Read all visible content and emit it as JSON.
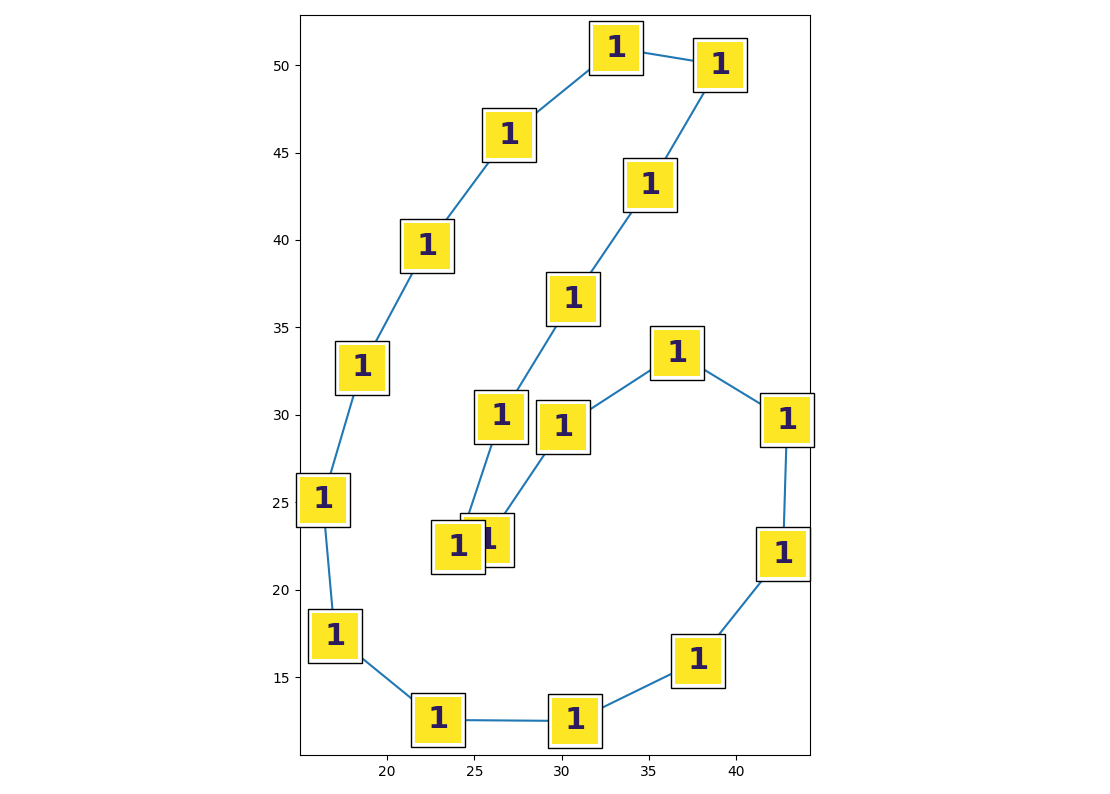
{
  "chart_data": {
    "type": "line",
    "x": [
      24.05,
      26.52,
      30.64,
      35.06,
      39.07,
      33.11,
      26.98,
      22.28,
      18.55,
      16.32,
      17.01,
      22.91,
      30.76,
      37.81,
      42.68,
      42.91,
      36.6,
      30.07,
      25.72
    ],
    "values": [
      22.44,
      29.88,
      36.62,
      43.14,
      50.0,
      50.97,
      46.0,
      39.65,
      32.68,
      25.13,
      17.35,
      12.55,
      12.49,
      15.93,
      22.04,
      29.7,
      33.53,
      29.3,
      22.84
    ],
    "point_labels": [
      "1",
      "1",
      "1",
      "1",
      "1",
      "1",
      "1",
      "1",
      "1",
      "1",
      "1",
      "1",
      "1",
      "1",
      "1",
      "1",
      "1",
      "1",
      "1"
    ],
    "color": "#1f77b4",
    "marker": "square",
    "xlim": [
      15.0,
      44.24
    ],
    "ylim": [
      10.54,
      52.86
    ],
    "xticks": [
      20,
      25,
      30,
      35,
      40
    ],
    "yticks": [
      15,
      20,
      25,
      30,
      35,
      40,
      45,
      50
    ]
  }
}
